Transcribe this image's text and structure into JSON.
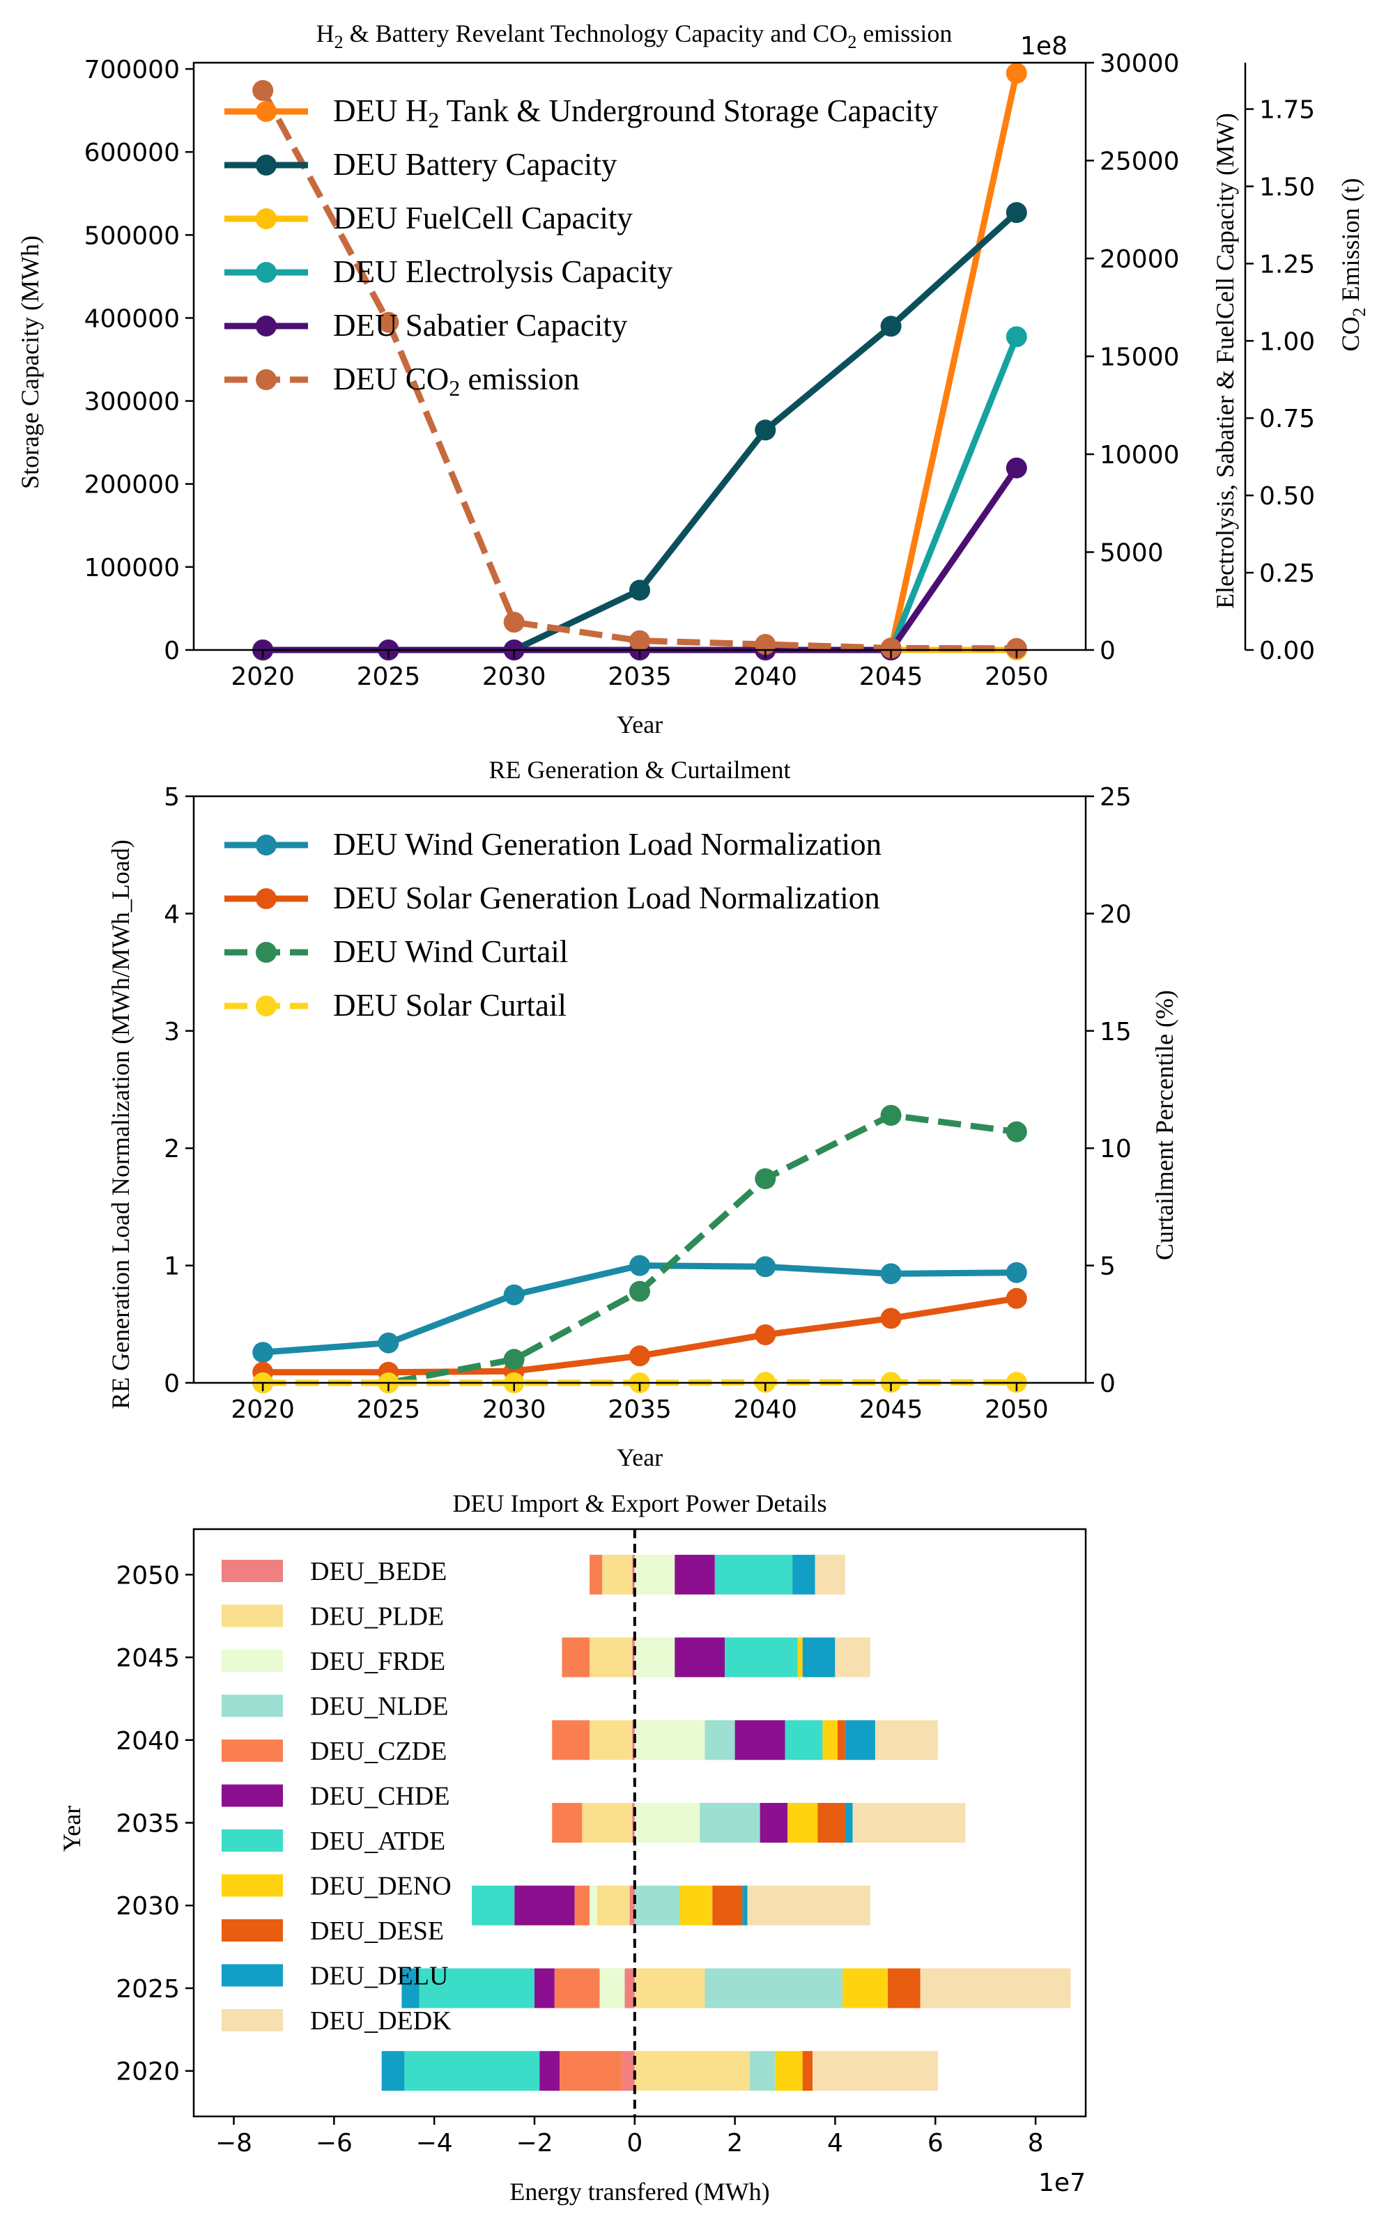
{
  "chart_data": [
    {
      "type": "line",
      "title_main": "H",
      "title_sub2": "2",
      "title_mid": " & Battery Revelant Technology Capacity and CO",
      "title_sub2b": "2",
      "title_end": " emission",
      "xlabel": "Year",
      "ylabel_left": "Storage Capacity (MWh)",
      "ylabel_right1": "Electrolysis, Sabatier & FuelCell Capacity (MW)",
      "ylabel_right2_a": "CO",
      "ylabel_right2_sub": "2",
      "ylabel_right2_b": " Emission (t)",
      "offset_text": "1e8",
      "x": [
        2020,
        2025,
        2030,
        2035,
        2040,
        2045,
        2050
      ],
      "xticks": [
        "2020",
        "2025",
        "2030",
        "2035",
        "2040",
        "2045",
        "2050"
      ],
      "ylim_left": [
        0,
        700000
      ],
      "yticks_left": [
        "0",
        "100000",
        "200000",
        "300000",
        "400000",
        "500000",
        "600000",
        "700000"
      ],
      "ylim_right1": [
        0,
        30000
      ],
      "yticks_right1": [
        "0",
        "5000",
        "10000",
        "15000",
        "20000",
        "25000",
        "30000"
      ],
      "ylim_right2": [
        0,
        1.9
      ],
      "yticks_right2": [
        "0.00",
        "0.25",
        "0.50",
        "0.75",
        "1.00",
        "1.25",
        "1.50",
        "1.75"
      ],
      "series": [
        {
          "name_a": "DEU H",
          "name_sub": "2",
          "name_b": " Tank & Underground Storage Capacity",
          "axis": "left",
          "color": "#ff7f0e",
          "dashed": false,
          "values": [
            0,
            0,
            0,
            0,
            0,
            0,
            695000
          ]
        },
        {
          "name": "DEU Battery Capacity",
          "axis": "left",
          "color": "#0b4f5c",
          "dashed": false,
          "values": [
            0,
            0,
            0,
            72000,
            265000,
            390000,
            527000
          ]
        },
        {
          "name": "DEU FuelCell Capacity",
          "axis": "right1",
          "color": "#ffc107",
          "dashed": false,
          "values": [
            0,
            0,
            0,
            0,
            0,
            0,
            0
          ]
        },
        {
          "name": "DEU Electrolysis Capacity",
          "axis": "right1",
          "color": "#17a2a2",
          "dashed": false,
          "values": [
            0,
            0,
            0,
            0,
            0,
            0,
            16000
          ]
        },
        {
          "name": "DEU Sabatier Capacity",
          "axis": "right1",
          "color": "#4b0f74",
          "dashed": false,
          "values": [
            0,
            0,
            0,
            0,
            0,
            0,
            9300
          ]
        },
        {
          "name_a": "DEU CO",
          "name_sub": "2",
          "name_b": " emission",
          "axis": "right2",
          "color": "#c66a3e",
          "dashed": true,
          "values": [
            1.81,
            1.06,
            0.09,
            0.03,
            0.018,
            0.006,
            0.005
          ]
        }
      ]
    },
    {
      "type": "line",
      "title": "RE Generation & Curtailment",
      "xlabel": "Year",
      "ylabel_left": "RE Generation Load Normalization (MWh/MWh_Load)",
      "ylabel_right": "Curtailment Percentile (%)",
      "x": [
        2020,
        2025,
        2030,
        2035,
        2040,
        2045,
        2050
      ],
      "xticks": [
        "2020",
        "2025",
        "2030",
        "2035",
        "2040",
        "2045",
        "2050"
      ],
      "ylim_left": [
        0,
        5
      ],
      "yticks_left": [
        "0",
        "1",
        "2",
        "3",
        "4",
        "5"
      ],
      "ylim_right": [
        0,
        25
      ],
      "yticks_right": [
        "0",
        "5",
        "10",
        "15",
        "20",
        "25"
      ],
      "series": [
        {
          "name": "DEU Wind Generation Load Normalization",
          "axis": "left",
          "color": "#1a8aa6",
          "dashed": false,
          "values": [
            0.26,
            0.34,
            0.75,
            1.0,
            0.99,
            0.93,
            0.94
          ]
        },
        {
          "name": "DEU Solar Generation Load Normalization",
          "axis": "left",
          "color": "#e4560f",
          "dashed": false,
          "values": [
            0.09,
            0.09,
            0.1,
            0.23,
            0.41,
            0.55,
            0.72
          ]
        },
        {
          "name": "DEU Wind Curtail",
          "axis": "right",
          "color": "#2e8b57",
          "dashed": true,
          "values": [
            0.0,
            0.0,
            1.0,
            3.9,
            8.7,
            11.4,
            10.7
          ]
        },
        {
          "name": "DEU Solar Curtail",
          "axis": "right",
          "color": "#ffd51a",
          "dashed": true,
          "values": [
            0.0,
            0.0,
            0.0,
            0.0,
            0.02,
            0.02,
            0.02
          ]
        }
      ]
    },
    {
      "type": "bar",
      "orientation": "horizontal",
      "stacked": true,
      "title": "DEU Import & Export Power Details",
      "xlabel": "Energy transfered (MWh)",
      "ylabel": "Year",
      "offset_text": "1e7",
      "xlim": [
        -8.8,
        9.0
      ],
      "xticks": [
        "−8",
        "−6",
        "−4",
        "−2",
        "0",
        "2",
        "4",
        "6",
        "8"
      ],
      "xtick_values": [
        -8,
        -6,
        -4,
        -2,
        0,
        2,
        4,
        6,
        8
      ],
      "categories": [
        "2020",
        "2025",
        "2030",
        "2035",
        "2040",
        "2045",
        "2050"
      ],
      "series": [
        {
          "name": "DEU_BEDE",
          "color": "#f08080",
          "values": [
            -0.25,
            -0.2,
            -0.1,
            -0.05,
            -0.05,
            -0.05,
            -0.05
          ]
        },
        {
          "name": "DEU_PLDE",
          "color": "#fadf8c",
          "values": [
            2.3,
            1.4,
            -0.65,
            -1.0,
            -0.85,
            -0.85,
            -0.6
          ]
        },
        {
          "name": "DEU_FRDE",
          "color": "#e8fbd2",
          "values": [
            0.0,
            -0.5,
            -0.15,
            1.3,
            1.4,
            0.8,
            0.8
          ]
        },
        {
          "name": "DEU_NLDE",
          "color": "#9ddfd1",
          "values": [
            0.5,
            2.75,
            0.9,
            1.2,
            0.6,
            0.0,
            0.0
          ]
        },
        {
          "name": "DEU_CZDE",
          "color": "#fa7f50",
          "values": [
            -1.25,
            -0.9,
            -0.3,
            -0.6,
            -0.75,
            -0.55,
            -0.25
          ]
        },
        {
          "name": "DEU_CHDE",
          "color": "#8b0f8f",
          "values": [
            -0.4,
            -0.4,
            -1.2,
            0.55,
            1.0,
            1.0,
            0.8
          ]
        },
        {
          "name": "DEU_ATDE",
          "color": "#3bdcc8",
          "values": [
            -2.7,
            -2.3,
            -0.85,
            0.0,
            0.75,
            1.45,
            1.55
          ]
        },
        {
          "name": "DEU_DENO",
          "color": "#ffd30f",
          "values": [
            0.55,
            0.9,
            0.65,
            0.6,
            0.3,
            0.1,
            0.0
          ]
        },
        {
          "name": "DEU_DESE",
          "color": "#e85d0f",
          "values": [
            0.2,
            0.65,
            0.6,
            0.55,
            0.15,
            0.0,
            0.0
          ]
        },
        {
          "name": "DEU_DELU",
          "color": "#119fc6",
          "values": [
            -0.45,
            -0.35,
            0.1,
            0.15,
            0.6,
            0.65,
            0.45
          ]
        },
        {
          "name": "DEU_DEDK",
          "color": "#f8dfb0",
          "values": [
            2.5,
            3.0,
            2.45,
            2.25,
            1.25,
            0.7,
            0.6
          ]
        }
      ]
    }
  ]
}
